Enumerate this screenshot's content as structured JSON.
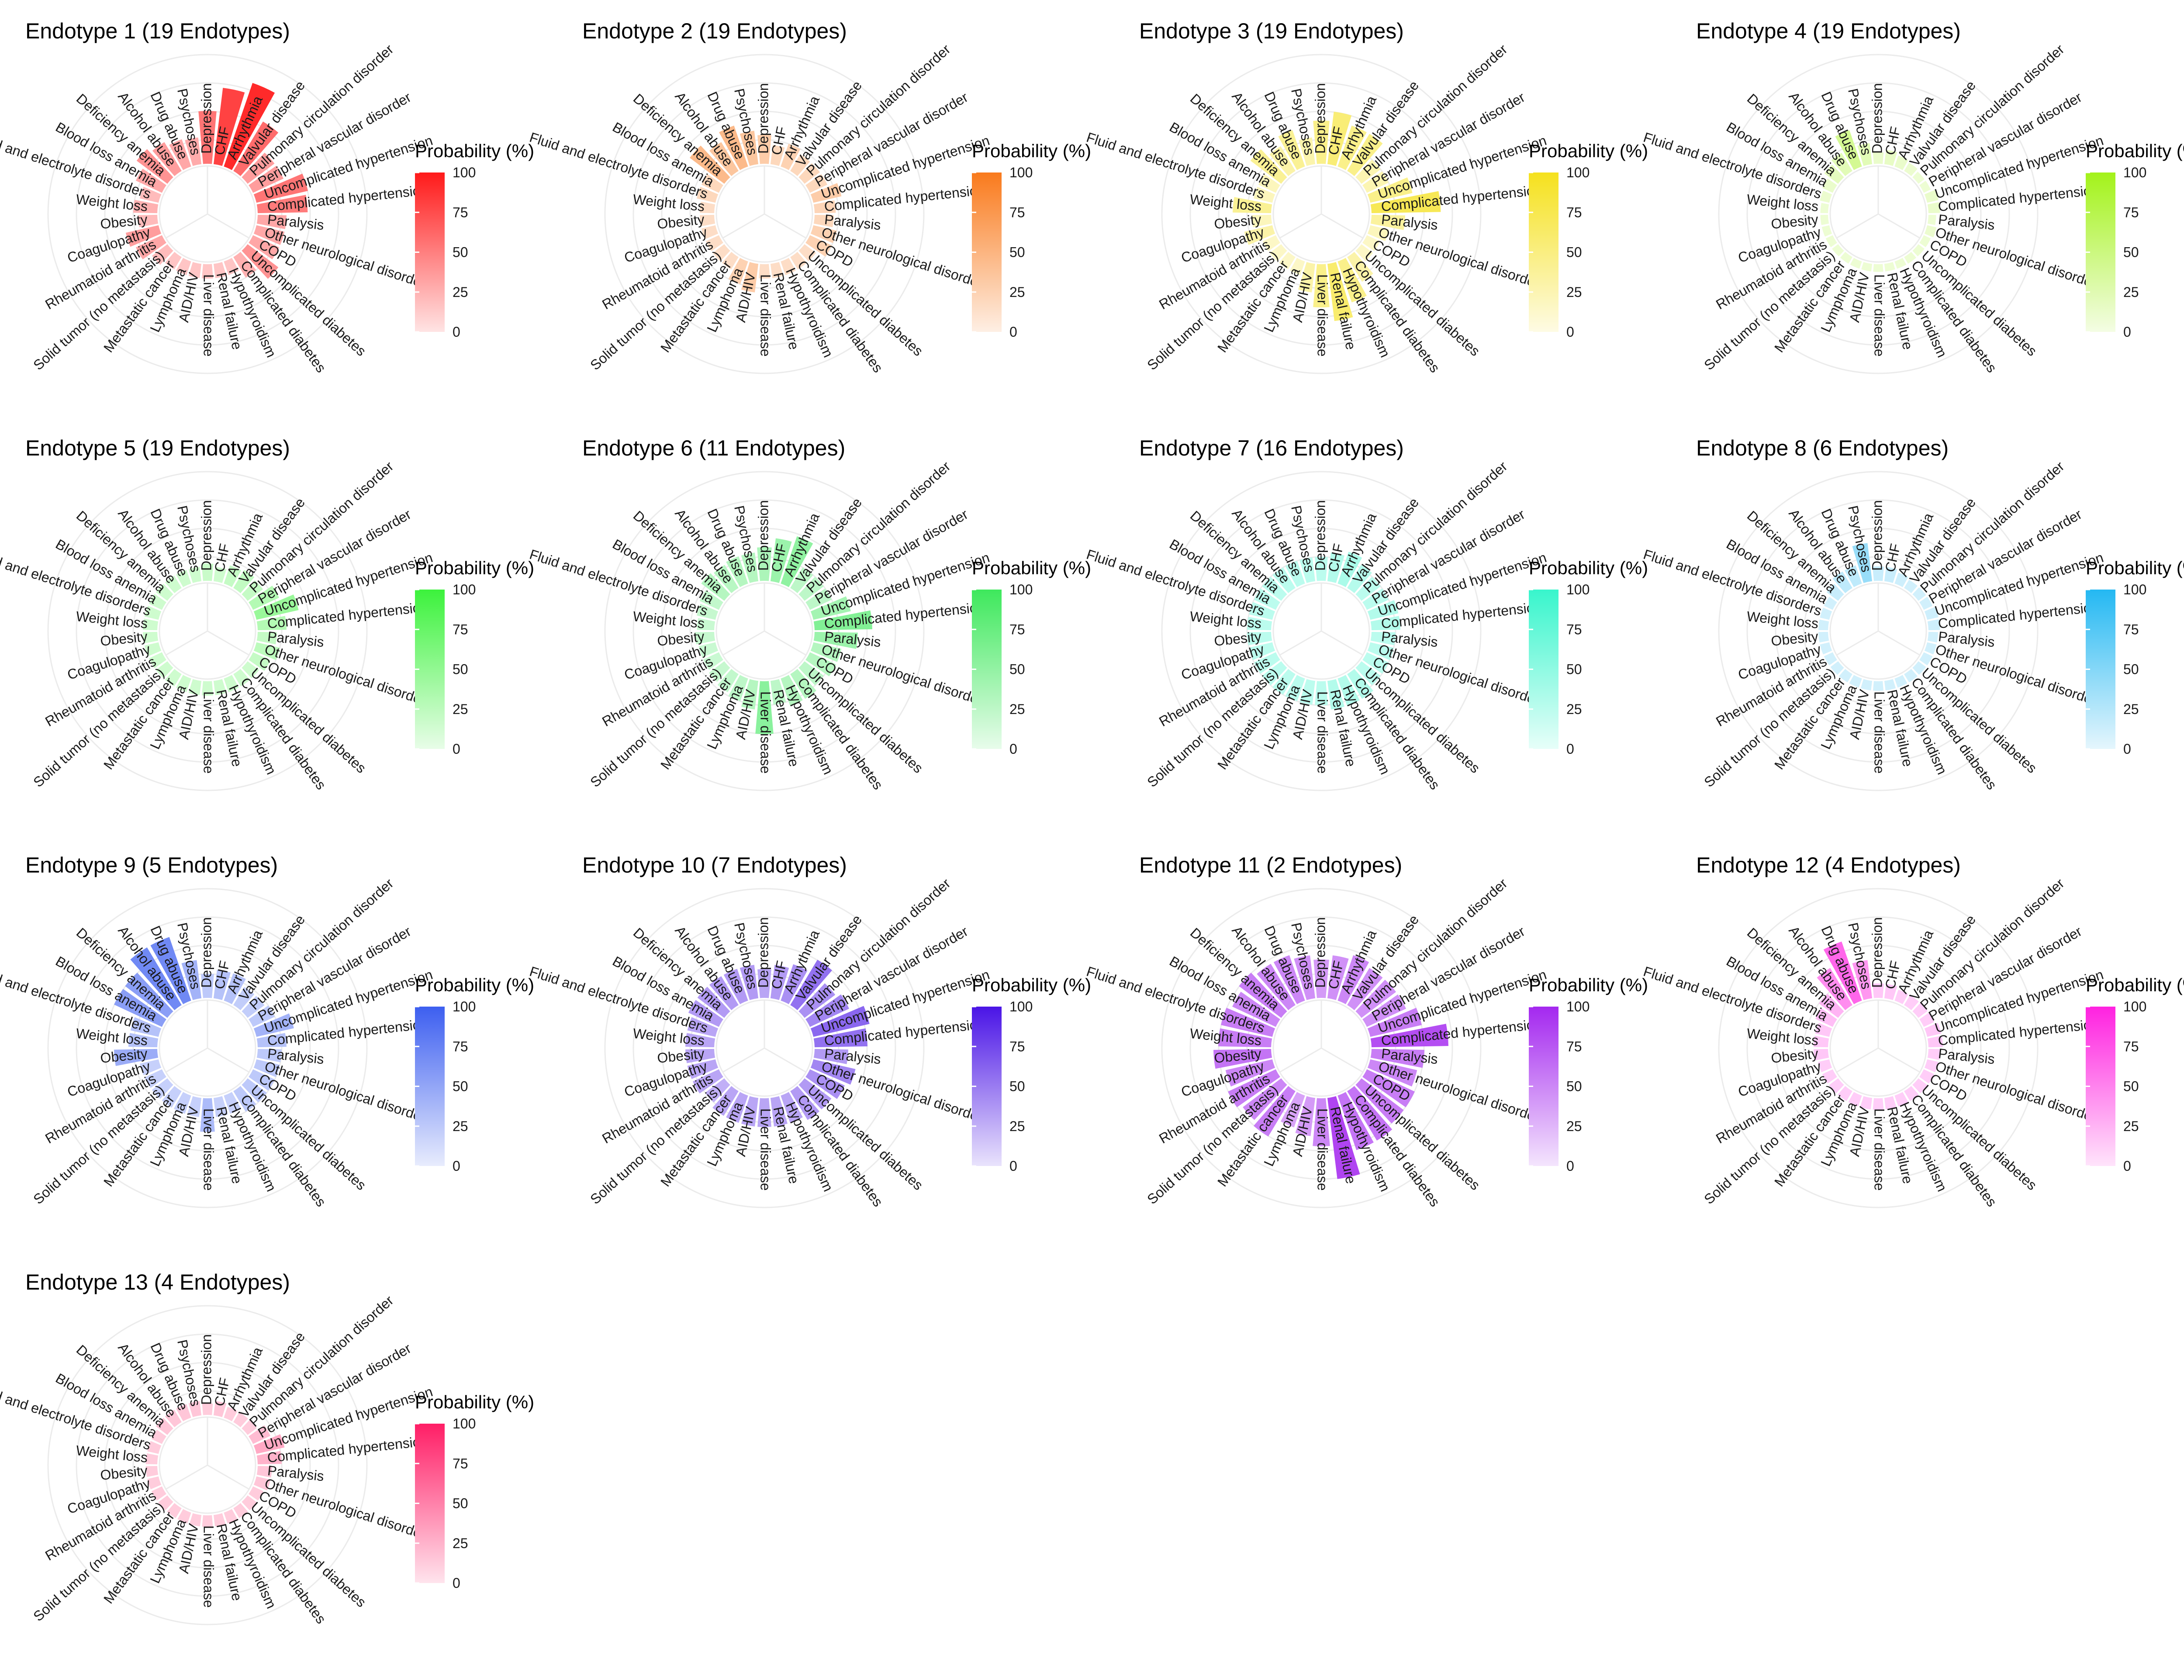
{
  "chart_data": {
    "type": "radial-bar",
    "categories": [
      "Depression",
      "CHF",
      "Arrhythmia",
      "Valvular disease",
      "Pulmonary circulation disorder",
      "Peripheral vascular disorder",
      "Uncomplicated hypertension",
      "Complicated hypertension",
      "Paralysis",
      "Other neurological disorders",
      "COPD",
      "Uncomplicated diabetes",
      "Complicated diabetes",
      "Hypothyroidism",
      "Renal failure",
      "Liver disease",
      "AID/HIV",
      "Lymphoma",
      "Metastatic cancer",
      "Solid tumor (no metastasis)",
      "Rheumatoid arthritis",
      "Coagulopathy",
      "Obesity",
      "Weight loss",
      "Fluid and electrolyte disorders",
      "Blood loss anemia",
      "Deficiency anemia",
      "Alcohol abuse",
      "Drug abuse",
      "Psychoses"
    ],
    "legend": {
      "title": "Probability (%)",
      "ticks": [
        0,
        25,
        50,
        75,
        100
      ],
      "range": [
        0,
        100
      ]
    },
    "panels": [
      {
        "title": "Endotype  1 (19 Endotypes)",
        "color": "#ff1a1a",
        "values": [
          55,
          80,
          92,
          60,
          35,
          35,
          55,
          52,
          30,
          30,
          30,
          40,
          25,
          15,
          15,
          15,
          15,
          15,
          15,
          20,
          30,
          35,
          20,
          25,
          20,
          30,
          40,
          35,
          30,
          28
        ]
      },
      {
        "title": "Endotype  2 (19 Endotypes)",
        "color": "#f97a1c",
        "values": [
          30,
          20,
          25,
          20,
          20,
          20,
          30,
          22,
          20,
          25,
          25,
          15,
          15,
          15,
          15,
          15,
          30,
          25,
          15,
          15,
          15,
          15,
          15,
          15,
          20,
          20,
          45,
          35,
          45,
          35
        ]
      },
      {
        "title": "Endotype  3 (19 Endotypes)",
        "color": "#f5e11d",
        "values": [
          45,
          55,
          45,
          45,
          25,
          25,
          45,
          72,
          35,
          20,
          15,
          15,
          30,
          45,
          60,
          45,
          30,
          15,
          15,
          15,
          15,
          30,
          20,
          40,
          20,
          20,
          40,
          30,
          40,
          28
        ]
      },
      {
        "title": "Endotype  4 (19 Endotypes)",
        "color": "#a3f21a",
        "values": [
          12,
          15,
          12,
          10,
          8,
          8,
          12,
          12,
          8,
          10,
          8,
          8,
          8,
          8,
          8,
          8,
          8,
          8,
          8,
          8,
          8,
          8,
          8,
          8,
          10,
          12,
          18,
          22,
          40,
          22
        ]
      },
      {
        "title": "Endotype  5 (19 Endotypes)",
        "color": "#3cf23c",
        "values": [
          18,
          15,
          20,
          22,
          20,
          30,
          45,
          30,
          20,
          25,
          20,
          15,
          15,
          15,
          15,
          15,
          15,
          15,
          15,
          15,
          15,
          15,
          15,
          15,
          15,
          15,
          15,
          15,
          15,
          15
        ]
      },
      {
        "title": "Endotype  6 (11 Endotypes)",
        "color": "#3ee85c",
        "values": [
          35,
          45,
          52,
          25,
          25,
          25,
          40,
          60,
          45,
          30,
          30,
          25,
          30,
          30,
          25,
          55,
          30,
          25,
          22,
          20,
          18,
          18,
          20,
          18,
          20,
          22,
          30,
          28,
          30,
          30
        ]
      },
      {
        "title": "Endotype  7 (16 Endotypes)",
        "color": "#38f5cc",
        "values": [
          25,
          30,
          35,
          28,
          25,
          25,
          30,
          30,
          25,
          25,
          25,
          25,
          30,
          30,
          30,
          25,
          25,
          25,
          25,
          25,
          25,
          25,
          25,
          25,
          25,
          25,
          25,
          25,
          25,
          25
        ]
      },
      {
        "title": "Endotype  8 (6 Endotypes)",
        "color": "#24b8f2",
        "values": [
          15,
          15,
          12,
          10,
          10,
          10,
          12,
          12,
          10,
          10,
          10,
          10,
          10,
          10,
          10,
          10,
          10,
          10,
          10,
          10,
          10,
          10,
          10,
          10,
          10,
          10,
          15,
          20,
          20,
          40
        ]
      },
      {
        "title": "Endotype  9 (5 Endotypes)",
        "color": "#3d5ff0",
        "values": [
          25,
          30,
          30,
          22,
          22,
          25,
          40,
          30,
          25,
          25,
          25,
          25,
          25,
          20,
          20,
          35,
          20,
          20,
          20,
          20,
          20,
          20,
          45,
          30,
          30,
          55,
          55,
          70,
          70,
          40
        ]
      },
      {
        "title": "Endotype  10 (7 Endotypes)",
        "color": "#4a14e6",
        "values": [
          30,
          35,
          40,
          55,
          40,
          45,
          60,
          55,
          35,
          45,
          40,
          35,
          35,
          30,
          30,
          30,
          30,
          30,
          30,
          25,
          30,
          30,
          30,
          30,
          30,
          35,
          35,
          35,
          35,
          35
        ]
      },
      {
        "title": "Endotype  11 (2 Endotypes)",
        "color": "#a428ef",
        "values": [
          40,
          45,
          50,
          45,
          45,
          45,
          55,
          80,
          55,
          50,
          55,
          55,
          60,
          60,
          85,
          50,
          40,
          35,
          55,
          50,
          55,
          50,
          60,
          55,
          55,
          50,
          55,
          50,
          50,
          45
        ]
      },
      {
        "title": "Endotype  12 (4 Endotypes)",
        "color": "#ff22e0",
        "values": [
          15,
          15,
          12,
          12,
          12,
          12,
          15,
          15,
          12,
          12,
          12,
          12,
          12,
          12,
          12,
          12,
          12,
          12,
          12,
          12,
          12,
          12,
          15,
          15,
          15,
          20,
          25,
          45,
          65,
          40
        ]
      },
      {
        "title": "Endotype  13 (4 Endotypes)",
        "color": "#ff1e66",
        "values": [
          12,
          15,
          12,
          12,
          12,
          20,
          30,
          25,
          15,
          15,
          12,
          12,
          12,
          12,
          12,
          12,
          12,
          12,
          12,
          12,
          12,
          12,
          12,
          12,
          12,
          12,
          15,
          15,
          15,
          15
        ]
      }
    ]
  }
}
